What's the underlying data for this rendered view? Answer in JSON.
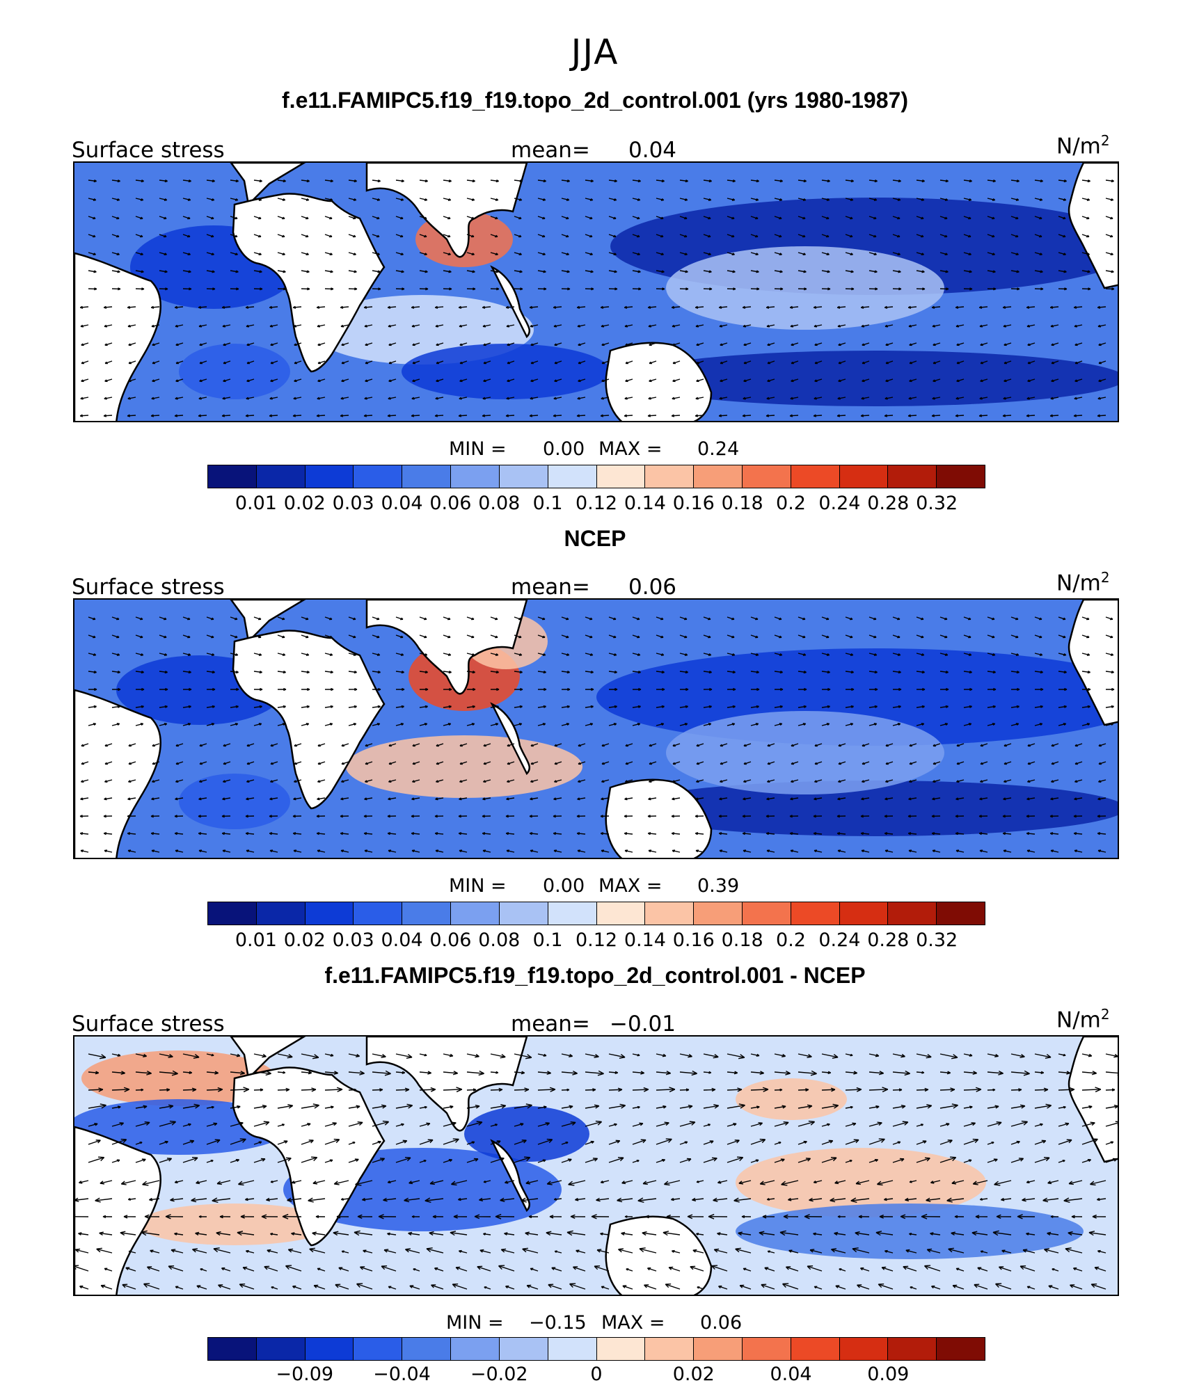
{
  "season": "JJA",
  "colors": {
    "scale": [
      "#08137a",
      "#0a27a8",
      "#0d3bd6",
      "#2a5de8",
      "#4a7ce8",
      "#7ba0f0",
      "#a9c2f4",
      "#d2e2fb",
      "#fde6d3",
      "#fbc4a6",
      "#f79e78",
      "#f3734d",
      "#ec4a26",
      "#d62e12",
      "#b21c0a",
      "#7f0c04"
    ],
    "land": "#ffffff",
    "outline": "#000000"
  },
  "panels": [
    {
      "title": "f.e11.FAMIPC5.f19_f19.topo_2d_control.001 (yrs 1980-1987)",
      "left_label": "Surface stress",
      "mean_label": "mean=",
      "mean_value": "0.04",
      "units": "N/m",
      "units_sup": "2",
      "min_label": "MIN =",
      "min_value": "0.00",
      "max_label": "MAX =",
      "max_value": "0.24",
      "colorbar_ticks": [
        "0.01",
        "0.02",
        "0.03",
        "0.04",
        "0.06",
        "0.08",
        "0.1",
        "0.12",
        "0.14",
        "0.16",
        "0.18",
        "0.2",
        "0.24",
        "0.28",
        "0.32"
      ]
    },
    {
      "title": "NCEP",
      "left_label": "Surface stress",
      "mean_label": "mean=",
      "mean_value": "0.06",
      "units": "N/m",
      "units_sup": "2",
      "min_label": "MIN =",
      "min_value": "0.00",
      "max_label": "MAX =",
      "max_value": "0.39",
      "colorbar_ticks": [
        "0.01",
        "0.02",
        "0.03",
        "0.04",
        "0.06",
        "0.08",
        "0.1",
        "0.12",
        "0.14",
        "0.16",
        "0.18",
        "0.2",
        "0.24",
        "0.28",
        "0.32"
      ]
    },
    {
      "title": "f.e11.FAMIPC5.f19_f19.topo_2d_control.001 - NCEP",
      "left_label": "Surface stress",
      "mean_label": "mean=",
      "mean_value": "−0.01",
      "units": "N/m",
      "units_sup": "2",
      "min_label": "MIN =",
      "min_value": "−0.15",
      "max_label": "MAX =",
      "max_value": "0.06",
      "colorbar_ticks": [
        "−0.09",
        "−0.04",
        "−0.02",
        "0",
        "0.02",
        "0.04",
        "0.09"
      ]
    }
  ]
}
